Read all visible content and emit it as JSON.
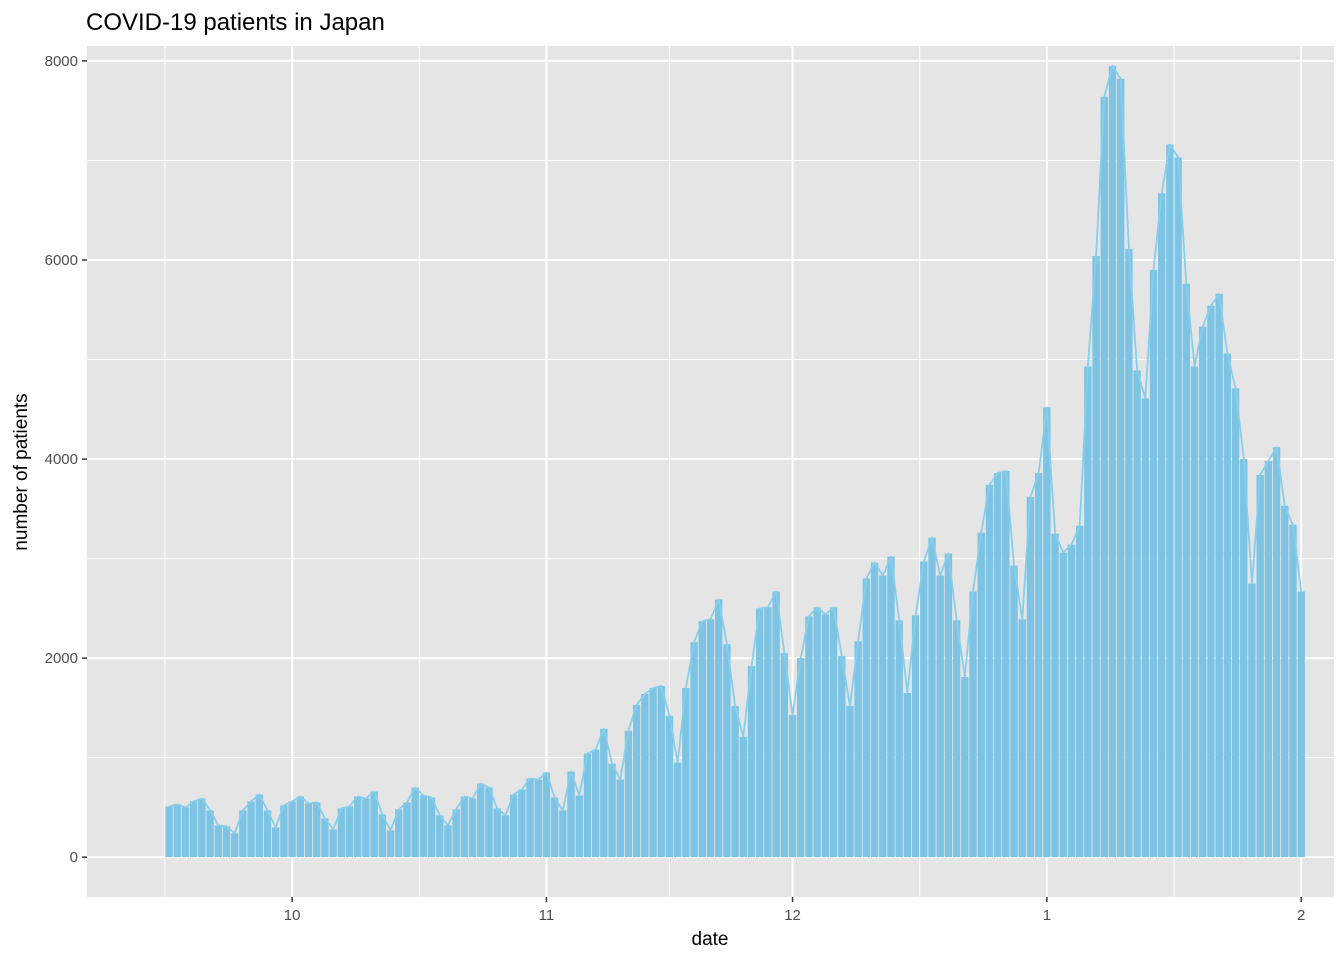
{
  "chart_data": {
    "type": "bar",
    "title": "COVID-19 patients in Japan",
    "xlabel": "date",
    "ylabel": "number of patients",
    "ylim": [
      -400,
      8150
    ],
    "y_ticks": [
      0,
      2000,
      4000,
      6000,
      8000
    ],
    "x_ticks": [
      {
        "label": "10",
        "date": "2020-10-01"
      },
      {
        "label": "11",
        "date": "2020-11-01"
      },
      {
        "label": "12",
        "date": "2020-12-01"
      },
      {
        "label": "1",
        "date": "2021-01-01"
      },
      {
        "label": "2",
        "date": "2021-02-01"
      }
    ],
    "x_range": [
      "2020-09-06",
      "2021-02-05"
    ],
    "grid": true,
    "overlay_line": true,
    "colors": {
      "bar": "#7DC3E4",
      "line": "#87CEEB",
      "panel": "#E5E5E5",
      "grid": "#FFFFFF"
    },
    "start_date": "2020-09-16",
    "values": [
      510,
      530,
      500,
      560,
      590,
      470,
      320,
      310,
      240,
      470,
      560,
      630,
      470,
      300,
      520,
      560,
      610,
      540,
      550,
      390,
      280,
      490,
      510,
      610,
      590,
      660,
      430,
      270,
      480,
      550,
      700,
      620,
      600,
      420,
      320,
      480,
      610,
      590,
      740,
      700,
      490,
      420,
      630,
      680,
      790,
      780,
      850,
      600,
      470,
      860,
      620,
      1040,
      1080,
      1290,
      940,
      780,
      1270,
      1530,
      1640,
      1700,
      1720,
      1420,
      950,
      1700,
      2160,
      2370,
      2390,
      2590,
      2140,
      1520,
      1210,
      1920,
      2500,
      2510,
      2670,
      2050,
      1430,
      2000,
      2420,
      2510,
      2440,
      2510,
      2020,
      1520,
      2170,
      2800,
      2960,
      2830,
      3020,
      2380,
      1650,
      2430,
      2970,
      3210,
      2830,
      3050,
      2380,
      1810,
      2670,
      3260,
      3740,
      3860,
      3880,
      2930,
      2390,
      3620,
      3860,
      4520,
      3250,
      3060,
      3140,
      3330,
      4930,
      6040,
      7640,
      7950,
      7820,
      6110,
      4890,
      4610,
      5900,
      6670,
      7160,
      7030,
      5760,
      4930,
      5330,
      5540,
      5660,
      5060,
      4710,
      4000,
      2750,
      3840,
      3980,
      4120,
      3530,
      3340,
      2670
    ]
  }
}
